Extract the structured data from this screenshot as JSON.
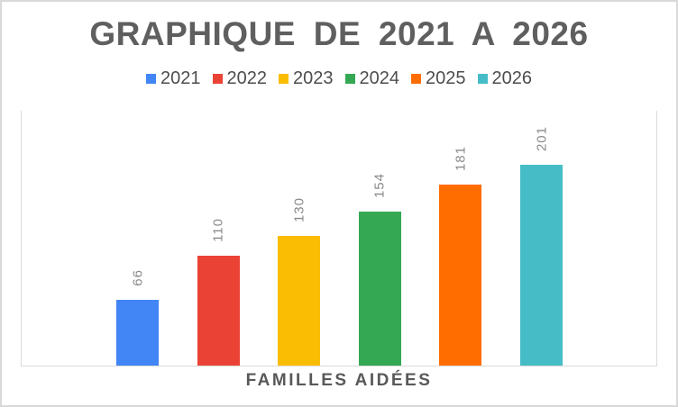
{
  "chart_data": {
    "type": "bar",
    "title": "GRAPHIQUE DE 2021 A 2026",
    "categories": [
      "2021",
      "2022",
      "2023",
      "2024",
      "2025",
      "2026"
    ],
    "values": [
      66,
      110,
      130,
      154,
      181,
      201
    ],
    "series_colors": [
      "#4285F4",
      "#EA4335",
      "#FBBC04",
      "#34A853",
      "#FF6D01",
      "#46BDC6"
    ],
    "xlabel": "FAMILLES AIDÉES",
    "ylabel": "",
    "ylim": [
      0,
      256
    ],
    "grid": false,
    "legend_position": "top",
    "data_labels": {
      "visible": true,
      "rotation": -90,
      "color": "#8A8A8A"
    }
  },
  "colors": {
    "background": "#FFFFFF",
    "frame_border": "#D9D9D9",
    "axis_line": "#DADADA",
    "title_text": "#5F5F5F",
    "legend_text": "#4D4D4D",
    "xlabel_text": "#595959"
  }
}
